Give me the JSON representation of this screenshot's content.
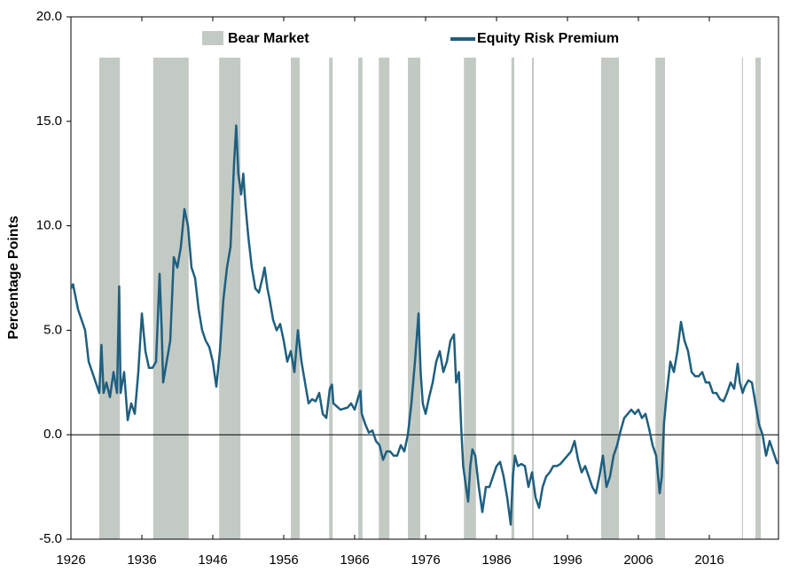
{
  "chart_data": {
    "type": "line",
    "y_label": "Percentage Points",
    "xlim": [
      1926,
      2025.75
    ],
    "xticks": [
      1926,
      1936,
      1946,
      1956,
      1966,
      1976,
      1986,
      1996,
      2006,
      2016
    ],
    "ylim": [
      -5,
      20
    ],
    "yticks": [
      {
        "value": -5,
        "label": "-5.0"
      },
      {
        "value": 0,
        "label": "0.0"
      },
      {
        "value": 5,
        "label": "5.0"
      },
      {
        "value": 10,
        "label": "10.0"
      },
      {
        "value": 15,
        "label": "15.0"
      },
      {
        "value": 20,
        "label": "20.0"
      }
    ],
    "bear_markets": {
      "name": "Bear Market",
      "color": "#c3cac4",
      "ranges": [
        [
          1930.0,
          1932.9
        ],
        [
          1937.6,
          1942.6
        ],
        [
          1946.9,
          1949.9
        ],
        [
          1957.0,
          1958.25
        ],
        [
          1962.4,
          1962.9
        ],
        [
          1966.5,
          1967.1
        ],
        [
          1969.4,
          1970.9
        ],
        [
          1973.5,
          1975.25
        ],
        [
          1981.4,
          1983.1
        ],
        [
          1988.1,
          1988.5
        ],
        [
          1991.0,
          1991.25
        ],
        [
          2000.75,
          2003.25
        ],
        [
          2008.4,
          2009.75
        ],
        [
          2020.6,
          2020.75
        ],
        [
          2022.5,
          2023.25
        ]
      ]
    },
    "x": [
      1926,
      1926.3,
      1927,
      1928,
      1928.5,
      1929,
      1929.5,
      1930,
      1930.3,
      1930.6,
      1931,
      1931.5,
      1932,
      1932.5,
      1932.8,
      1933,
      1933.5,
      1934,
      1934.5,
      1935,
      1935.5,
      1936,
      1936.5,
      1937,
      1937.5,
      1938,
      1938.5,
      1938.8,
      1939,
      1939.5,
      1940,
      1940.5,
      1941,
      1941.5,
      1942,
      1942.5,
      1943,
      1943.5,
      1944,
      1944.5,
      1945,
      1945.5,
      1946,
      1946.5,
      1947,
      1947.5,
      1948,
      1948.5,
      1949,
      1949.3,
      1949.6,
      1950,
      1950.3,
      1950.6,
      1951,
      1951.5,
      1952,
      1952.5,
      1953,
      1953.3,
      1953.7,
      1954,
      1954.5,
      1955,
      1955.5,
      1956,
      1956.5,
      1957,
      1957.5,
      1958,
      1958.5,
      1959,
      1959.5,
      1960,
      1960.5,
      1961,
      1961.5,
      1962,
      1962.5,
      1962.8,
      1963,
      1964,
      1965,
      1965.5,
      1966,
      1966.5,
      1966.8,
      1967,
      1967.5,
      1968,
      1968.5,
      1969,
      1969.5,
      1970,
      1970.5,
      1971,
      1971.5,
      1972,
      1972.5,
      1973,
      1973.5,
      1974,
      1974.5,
      1975,
      1975.3,
      1975.6,
      1976,
      1976.5,
      1977,
      1977.5,
      1978,
      1978.5,
      1979,
      1979.5,
      1980,
      1980.3,
      1980.7,
      1981,
      1981.3,
      1981.7,
      1982,
      1982.3,
      1982.6,
      1983,
      1983.5,
      1984,
      1984.5,
      1985,
      1985.5,
      1986,
      1986.5,
      1987,
      1987.5,
      1988,
      1988.3,
      1988.6,
      1989,
      1989.5,
      1990,
      1990.5,
      1991,
      1991.5,
      1992,
      1992.5,
      1993,
      1993.5,
      1994,
      1994.5,
      1995,
      1995.5,
      1996,
      1996.5,
      1997,
      1997.5,
      1998,
      1998.5,
      1999,
      1999.5,
      2000,
      2000.5,
      2001,
      2001.5,
      2002,
      2002.5,
      2003,
      2003.5,
      2004,
      2004.5,
      2005,
      2005.5,
      2006,
      2006.5,
      2007,
      2007.5,
      2008,
      2008.5,
      2009,
      2009.3,
      2009.6,
      2010,
      2010.5,
      2011,
      2011.5,
      2012,
      2012.5,
      2013,
      2013.5,
      2014,
      2014.5,
      2015,
      2015.5,
      2016,
      2016.5,
      2017,
      2017.5,
      2018,
      2018.5,
      2019,
      2019.5,
      2020,
      2020.3,
      2020.7,
      2021,
      2021.5,
      2022,
      2022.5,
      2023,
      2023.5,
      2024,
      2024.5,
      2025,
      2025.6
    ],
    "series": [
      {
        "name": "Equity Risk Premium",
        "color": "#1f5f7f",
        "values": [
          7.0,
          7.2,
          6.0,
          5.0,
          3.5,
          3.0,
          2.5,
          2.0,
          4.3,
          2.0,
          2.5,
          1.8,
          3.0,
          2.0,
          7.1,
          2.0,
          3.0,
          0.7,
          1.5,
          1.0,
          3.0,
          5.8,
          4.0,
          3.2,
          3.2,
          3.5,
          7.7,
          5.0,
          2.5,
          3.5,
          4.5,
          8.5,
          8.0,
          9.0,
          10.8,
          10.0,
          8.0,
          7.5,
          6.0,
          5.0,
          4.5,
          4.2,
          3.5,
          2.3,
          4.0,
          6.5,
          8.0,
          9.0,
          13.0,
          14.8,
          12.5,
          11.5,
          12.5,
          11.0,
          9.5,
          8.0,
          7.0,
          6.8,
          7.5,
          8.0,
          7.0,
          6.5,
          5.5,
          5.0,
          5.3,
          4.5,
          3.5,
          4.0,
          3.0,
          5.0,
          3.5,
          2.5,
          1.5,
          1.7,
          1.6,
          2.0,
          1.0,
          0.8,
          2.2,
          2.4,
          1.5,
          1.2,
          1.3,
          1.5,
          1.2,
          1.8,
          2.1,
          1.0,
          0.5,
          0.1,
          0.2,
          -0.3,
          -0.5,
          -1.2,
          -0.8,
          -0.8,
          -1.0,
          -1.0,
          -0.5,
          -0.8,
          0.0,
          1.5,
          3.5,
          5.8,
          3.0,
          1.5,
          1.0,
          1.8,
          2.5,
          3.5,
          4.0,
          3.0,
          3.5,
          4.5,
          4.8,
          2.5,
          3.0,
          0.5,
          -1.5,
          -2.5,
          -3.2,
          -1.5,
          -0.7,
          -1.0,
          -2.5,
          -3.7,
          -2.5,
          -2.5,
          -2.0,
          -1.5,
          -1.3,
          -2.0,
          -3.0,
          -4.3,
          -2.0,
          -1.0,
          -1.5,
          -1.4,
          -1.5,
          -2.5,
          -1.8,
          -3.0,
          -3.5,
          -2.5,
          -2.0,
          -1.8,
          -1.5,
          -1.5,
          -1.4,
          -1.2,
          -1.0,
          -0.8,
          -0.3,
          -1.2,
          -1.8,
          -1.5,
          -2.0,
          -2.5,
          -2.8,
          -2.0,
          -1.0,
          -2.5,
          -2.0,
          -1.0,
          -0.5,
          0.2,
          0.8,
          1.0,
          1.2,
          1.0,
          1.2,
          0.8,
          1.0,
          0.3,
          -0.5,
          -1.0,
          -2.8,
          -2.0,
          0.5,
          2.0,
          3.5,
          3.0,
          4.0,
          5.4,
          4.5,
          4.0,
          3.0,
          2.8,
          2.8,
          3.0,
          2.5,
          2.5,
          2.0,
          2.0,
          1.7,
          1.6,
          2.0,
          2.5,
          2.2,
          3.4,
          2.5,
          2.0,
          2.3,
          2.6,
          2.5,
          1.5,
          0.5,
          0.0,
          -1.0,
          -0.3,
          -0.8,
          -1.4
        ]
      }
    ]
  }
}
